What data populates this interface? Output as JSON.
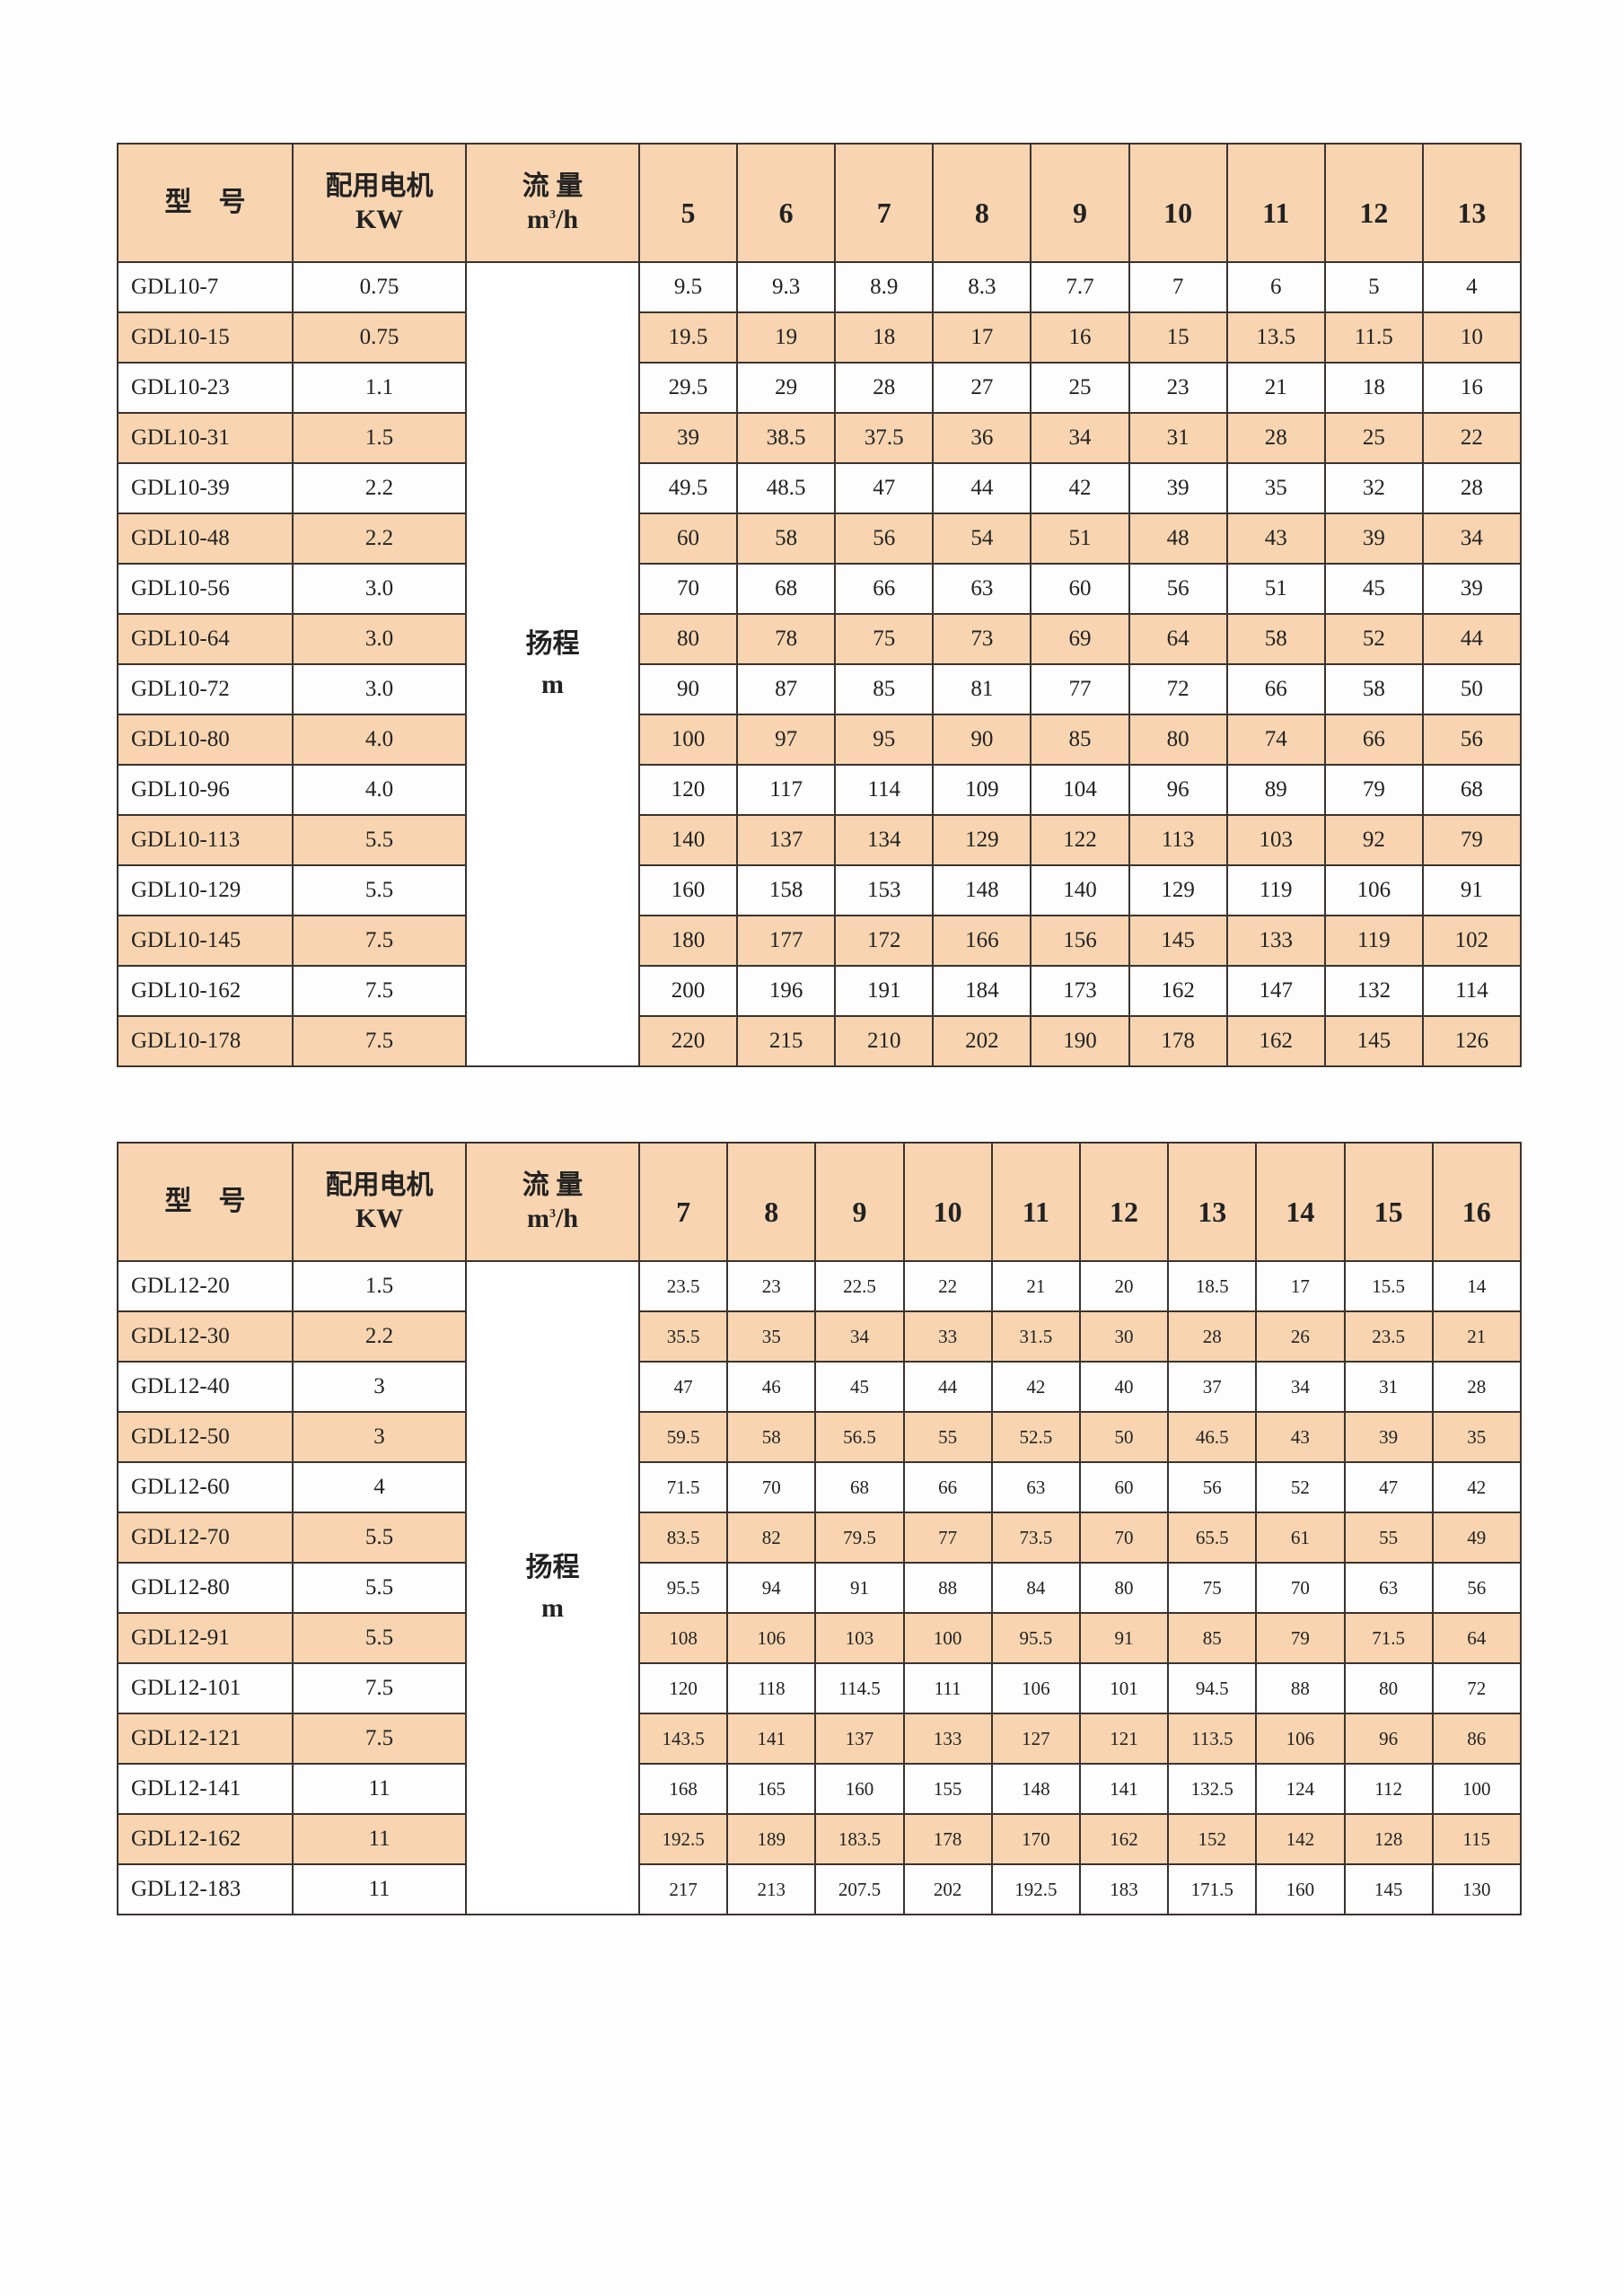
{
  "tables": [
    {
      "headers": {
        "model": "型　号",
        "motor_line1": "配用电机",
        "motor_line2": "KW",
        "flow_line1": "流 量",
        "flow_unit_m": "m",
        "flow_unit_sup": "3",
        "flow_unit_rest": "/h",
        "head_line1": "扬程",
        "head_line2": "m"
      },
      "flows": [
        "5",
        "6",
        "7",
        "8",
        "9",
        "10",
        "11",
        "12",
        "13"
      ],
      "rows": [
        {
          "model": "GDL10-7",
          "kw": "0.75",
          "heads": [
            "9.5",
            "9.3",
            "8.9",
            "8.3",
            "7.7",
            "7",
            "6",
            "5",
            "4"
          ]
        },
        {
          "model": "GDL10-15",
          "kw": "0.75",
          "heads": [
            "19.5",
            "19",
            "18",
            "17",
            "16",
            "15",
            "13.5",
            "11.5",
            "10"
          ]
        },
        {
          "model": "GDL10-23",
          "kw": "1.1",
          "heads": [
            "29.5",
            "29",
            "28",
            "27",
            "25",
            "23",
            "21",
            "18",
            "16"
          ]
        },
        {
          "model": "GDL10-31",
          "kw": "1.5",
          "heads": [
            "39",
            "38.5",
            "37.5",
            "36",
            "34",
            "31",
            "28",
            "25",
            "22"
          ]
        },
        {
          "model": "GDL10-39",
          "kw": "2.2",
          "heads": [
            "49.5",
            "48.5",
            "47",
            "44",
            "42",
            "39",
            "35",
            "32",
            "28"
          ]
        },
        {
          "model": "GDL10-48",
          "kw": "2.2",
          "heads": [
            "60",
            "58",
            "56",
            "54",
            "51",
            "48",
            "43",
            "39",
            "34"
          ]
        },
        {
          "model": "GDL10-56",
          "kw": "3.0",
          "heads": [
            "70",
            "68",
            "66",
            "63",
            "60",
            "56",
            "51",
            "45",
            "39"
          ]
        },
        {
          "model": "GDL10-64",
          "kw": "3.0",
          "heads": [
            "80",
            "78",
            "75",
            "73",
            "69",
            "64",
            "58",
            "52",
            "44"
          ]
        },
        {
          "model": "GDL10-72",
          "kw": "3.0",
          "heads": [
            "90",
            "87",
            "85",
            "81",
            "77",
            "72",
            "66",
            "58",
            "50"
          ]
        },
        {
          "model": "GDL10-80",
          "kw": "4.0",
          "heads": [
            "100",
            "97",
            "95",
            "90",
            "85",
            "80",
            "74",
            "66",
            "56"
          ]
        },
        {
          "model": "GDL10-96",
          "kw": "4.0",
          "heads": [
            "120",
            "117",
            "114",
            "109",
            "104",
            "96",
            "89",
            "79",
            "68"
          ]
        },
        {
          "model": "GDL10-113",
          "kw": "5.5",
          "heads": [
            "140",
            "137",
            "134",
            "129",
            "122",
            "113",
            "103",
            "92",
            "79"
          ]
        },
        {
          "model": "GDL10-129",
          "kw": "5.5",
          "heads": [
            "160",
            "158",
            "153",
            "148",
            "140",
            "129",
            "119",
            "106",
            "91"
          ]
        },
        {
          "model": "GDL10-145",
          "kw": "7.5",
          "heads": [
            "180",
            "177",
            "172",
            "166",
            "156",
            "145",
            "133",
            "119",
            "102"
          ]
        },
        {
          "model": "GDL10-162",
          "kw": "7.5",
          "heads": [
            "200",
            "196",
            "191",
            "184",
            "173",
            "162",
            "147",
            "132",
            "114"
          ]
        },
        {
          "model": "GDL10-178",
          "kw": "7.5",
          "heads": [
            "220",
            "215",
            "210",
            "202",
            "190",
            "178",
            "162",
            "145",
            "126"
          ]
        }
      ]
    },
    {
      "headers": {
        "model": "型　号",
        "motor_line1": "配用电机",
        "motor_line2": "KW",
        "flow_line1": "流 量",
        "flow_unit_m": "m",
        "flow_unit_sup": "3",
        "flow_unit_rest": "/h",
        "head_line1": "扬程",
        "head_line2": "m"
      },
      "flows": [
        "7",
        "8",
        "9",
        "10",
        "11",
        "12",
        "13",
        "14",
        "15",
        "16"
      ],
      "rows": [
        {
          "model": "GDL12-20",
          "kw": "1.5",
          "heads": [
            "23.5",
            "23",
            "22.5",
            "22",
            "21",
            "20",
            "18.5",
            "17",
            "15.5",
            "14"
          ]
        },
        {
          "model": "GDL12-30",
          "kw": "2.2",
          "heads": [
            "35.5",
            "35",
            "34",
            "33",
            "31.5",
            "30",
            "28",
            "26",
            "23.5",
            "21"
          ]
        },
        {
          "model": "GDL12-40",
          "kw": "3",
          "heads": [
            "47",
            "46",
            "45",
            "44",
            "42",
            "40",
            "37",
            "34",
            "31",
            "28"
          ]
        },
        {
          "model": "GDL12-50",
          "kw": "3",
          "heads": [
            "59.5",
            "58",
            "56.5",
            "55",
            "52.5",
            "50",
            "46.5",
            "43",
            "39",
            "35"
          ]
        },
        {
          "model": "GDL12-60",
          "kw": "4",
          "heads": [
            "71.5",
            "70",
            "68",
            "66",
            "63",
            "60",
            "56",
            "52",
            "47",
            "42"
          ]
        },
        {
          "model": "GDL12-70",
          "kw": "5.5",
          "heads": [
            "83.5",
            "82",
            "79.5",
            "77",
            "73.5",
            "70",
            "65.5",
            "61",
            "55",
            "49"
          ]
        },
        {
          "model": "GDL12-80",
          "kw": "5.5",
          "heads": [
            "95.5",
            "94",
            "91",
            "88",
            "84",
            "80",
            "75",
            "70",
            "63",
            "56"
          ]
        },
        {
          "model": "GDL12-91",
          "kw": "5.5",
          "heads": [
            "108",
            "106",
            "103",
            "100",
            "95.5",
            "91",
            "85",
            "79",
            "71.5",
            "64"
          ]
        },
        {
          "model": "GDL12-101",
          "kw": "7.5",
          "heads": [
            "120",
            "118",
            "114.5",
            "111",
            "106",
            "101",
            "94.5",
            "88",
            "80",
            "72"
          ]
        },
        {
          "model": "GDL12-121",
          "kw": "7.5",
          "heads": [
            "143.5",
            "141",
            "137",
            "133",
            "127",
            "121",
            "113.5",
            "106",
            "96",
            "86"
          ]
        },
        {
          "model": "GDL12-141",
          "kw": "11",
          "heads": [
            "168",
            "165",
            "160",
            "155",
            "148",
            "141",
            "132.5",
            "124",
            "112",
            "100"
          ]
        },
        {
          "model": "GDL12-162",
          "kw": "11",
          "heads": [
            "192.5",
            "189",
            "183.5",
            "178",
            "170",
            "162",
            "152",
            "142",
            "128",
            "115"
          ]
        },
        {
          "model": "GDL12-183",
          "kw": "11",
          "heads": [
            "217",
            "213",
            "207.5",
            "202",
            "192.5",
            "183",
            "171.5",
            "160",
            "145",
            "130"
          ]
        }
      ]
    }
  ],
  "colors": {
    "header_bg": "#f8d5b0",
    "stripe_bg": "#f8d5b0",
    "border": "#3a3330"
  }
}
